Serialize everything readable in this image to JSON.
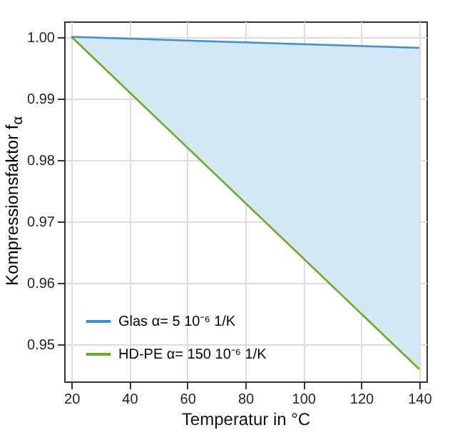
{
  "chart_data": {
    "type": "line",
    "xlabel": "Temperatur in °C",
    "ylabel": "Kompressionsfaktor f$_{α}$",
    "x": [
      20,
      140
    ],
    "xlim": [
      17.5,
      142.5
    ],
    "xticks": [
      20,
      40,
      60,
      80,
      100,
      120,
      140
    ],
    "ylim": [
      0.944,
      1.0025
    ],
    "yticks": [
      0.95,
      0.96,
      0.97,
      0.98,
      0.99,
      {
        "value": 1.0,
        "label": "1.00"
      }
    ],
    "grid": true,
    "legend": "bottom left",
    "series": [
      {
        "name": "Glas α= 5 10⁻⁶ 1/K",
        "color": "#3a8fd6",
        "values": [
          1.0,
          0.9982
        ],
        "lower": [
          1.0,
          0.946
        ],
        "upper": [
          1.0,
          0.9982
        ]
      },
      {
        "name": "HD-PE α= 150 10⁻⁶ 1/K",
        "color": "#6aaa25",
        "values": [
          1.0,
          0.946
        ]
      }
    ]
  }
}
